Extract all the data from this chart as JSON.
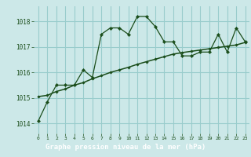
{
  "title": "Graphe pression niveau de la mer (hPa)",
  "bg_color": "#cce8e8",
  "footer_bg": "#2d6e2d",
  "footer_text_color": "#ffffff",
  "grid_color": "#99cccc",
  "line_color": "#1a4d1a",
  "marker_color": "#1a4d1a",
  "text_color": "#1a4d1a",
  "x_ticks": [
    0,
    1,
    2,
    3,
    4,
    5,
    6,
    7,
    8,
    9,
    10,
    11,
    12,
    13,
    14,
    15,
    16,
    17,
    18,
    19,
    20,
    21,
    22,
    23
  ],
  "y_ticks": [
    1014,
    1015,
    1016,
    1017,
    1018
  ],
  "xlim": [
    -0.5,
    23.5
  ],
  "ylim": [
    1013.6,
    1018.6
  ],
  "series1": [
    1014.1,
    1014.85,
    1015.5,
    1015.5,
    1015.5,
    1016.1,
    1015.8,
    1017.5,
    1017.75,
    1017.75,
    1017.5,
    1018.2,
    1018.2,
    1017.8,
    1017.2,
    1017.2,
    1016.65,
    1016.65,
    1016.8,
    1016.8,
    1017.5,
    1016.8,
    1017.75,
    1017.2
  ],
  "series2": [
    1015.05,
    1015.1,
    1015.25,
    1015.35,
    1015.5,
    1015.6,
    1015.75,
    1015.87,
    1016.0,
    1016.1,
    1016.2,
    1016.32,
    1016.42,
    1016.52,
    1016.62,
    1016.72,
    1016.78,
    1016.83,
    1016.88,
    1016.93,
    1016.98,
    1017.03,
    1017.08,
    1017.18
  ]
}
